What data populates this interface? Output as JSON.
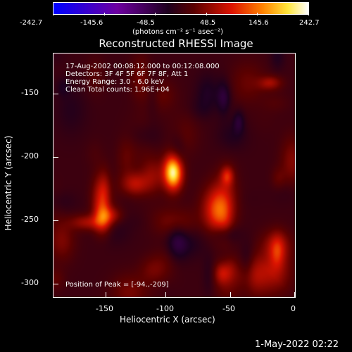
{
  "colorbar": {
    "ticks": [
      "-242.7",
      "-145.6",
      "-48.5",
      "48.5",
      "145.6",
      "242.7"
    ],
    "units": "(photons cm⁻² s⁻¹ asec⁻²)"
  },
  "plot": {
    "title": "Reconstructed RHESSI Image",
    "info_lines": [
      "17-Aug-2002 00:08:12.000 to 00:12:08.000",
      "Detectors: 3F 4F 5F 6F 7F 8F, Att 1",
      "Energy Range: 3.0 - 6.0 keV",
      "Clean     Total counts: 1.96E+04"
    ],
    "peak_label": "Position of Peak = [-94.,-209]",
    "xlabel": "Heliocentric X (arcsec)",
    "ylabel": "Heliocentric Y (arcsec)",
    "x_ticks": [
      "-150",
      "-100",
      "-50",
      "0"
    ],
    "y_ticks": [
      "-150",
      "-200",
      "-250",
      "-300"
    ]
  },
  "footer": {
    "timestamp": "1-May-2022 02:22"
  }
}
